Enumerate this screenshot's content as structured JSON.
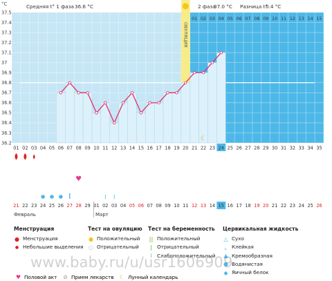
{
  "header": {
    "phase1_label": "Средняя t° 1 фаза",
    "phase1_value": "36.6 °C",
    "phase2_label": "2 фаза",
    "phase2_value": "37.0 °C",
    "diff_label": "Разница t°",
    "diff_value": "0.4 °C",
    "ovulation_label": "ОВУЛЯЦИЯ",
    "unit": "°C"
  },
  "colors": {
    "phase1_bg": "#c6e6f6",
    "phase2_bg": "#4db8e8",
    "bar_fill": "#ddf1fb",
    "line": "#e0306a",
    "coverline": "#ffffff",
    "ovulation": "#f7ec8a",
    "today_box": "#4db8e8"
  },
  "chart_data": {
    "type": "line",
    "ylim": [
      36.2,
      37.5
    ],
    "yticks": [
      "36.2",
      "36.3",
      "36.4",
      "36.5",
      "36.6",
      "36.7",
      "36.8",
      "36.9",
      "37",
      "37.1",
      "37.2",
      "37.3",
      "37.4",
      "37.5"
    ],
    "cycle_days": [
      "01",
      "02",
      "03",
      "04",
      "05",
      "06",
      "07",
      "08",
      "09",
      "10",
      "11",
      "12",
      "13",
      "14",
      "15",
      "16",
      "17",
      "18",
      "19",
      "20",
      "21",
      "22",
      "23",
      "24",
      "25",
      "26",
      "27",
      "28",
      "29",
      "30",
      "31",
      "32",
      "33",
      "34",
      "35"
    ],
    "phase2_days": [
      "01",
      "02",
      "03",
      "04",
      "05",
      "06",
      "07",
      "08",
      "09",
      "10",
      "11",
      "12",
      "13",
      "14",
      "15"
    ],
    "coverline": 36.8,
    "ovulation_day": 20,
    "today_day": 24,
    "series": [
      {
        "x": [
          6,
          7,
          8,
          9,
          10,
          11,
          12,
          13,
          14,
          15,
          16,
          17,
          18,
          19,
          20,
          21,
          22,
          23,
          24
        ],
        "values": [
          36.7,
          36.8,
          36.7,
          36.7,
          36.5,
          36.6,
          36.4,
          36.6,
          36.7,
          36.5,
          36.6,
          36.6,
          36.7,
          36.7,
          36.8,
          36.9,
          36.9,
          37.0,
          37.1
        ]
      }
    ]
  },
  "calendar": {
    "dates": [
      "21",
      "22",
      "23",
      "24",
      "25",
      "26",
      "27",
      "28",
      "29",
      "01",
      "02",
      "03",
      "04",
      "05",
      "06",
      "07",
      "08",
      "09",
      "10",
      "11",
      "12",
      "13",
      "14",
      "15",
      "16",
      "17",
      "18",
      "19",
      "20",
      "21",
      "22",
      "23",
      "24",
      "25",
      "26"
    ],
    "red_dates": [
      0,
      6,
      7,
      13,
      14,
      20,
      21,
      27,
      28,
      34
    ],
    "month1": "Февраль",
    "month2": "Март",
    "today_index": 23
  },
  "markers": {
    "menstruation_days": [
      1,
      2
    ],
    "light_days": [
      3
    ],
    "intercourse_day": 8,
    "fluid_days": [
      4,
      5,
      6
    ],
    "pos_test_day": 7,
    "faint_test_days": [
      11,
      12
    ],
    "moon_day": 22
  },
  "legend": {
    "menstruation": {
      "title": "Менструация",
      "items": [
        "Менструация",
        "Небольшие выделения"
      ]
    },
    "ovulation_test": {
      "title": "Тест на овуляцию",
      "items": [
        "Положительный",
        "Отрицательный"
      ]
    },
    "pregnancy_test": {
      "title": "Тест на беременность",
      "items": [
        "Положительный",
        "Отрицательный",
        "Слабоположительный"
      ]
    },
    "cervical_fluid": {
      "title": "Цервикальная жидкость",
      "items": [
        "Сухо",
        "Клейкая",
        "Кремообразная",
        "Водянистая",
        "Яичный белок"
      ]
    },
    "bottom": [
      "Половой акт",
      "Прием лекарств",
      "Лунный календарь"
    ]
  },
  "watermark": "www.baby.ru/u/usr1606909"
}
